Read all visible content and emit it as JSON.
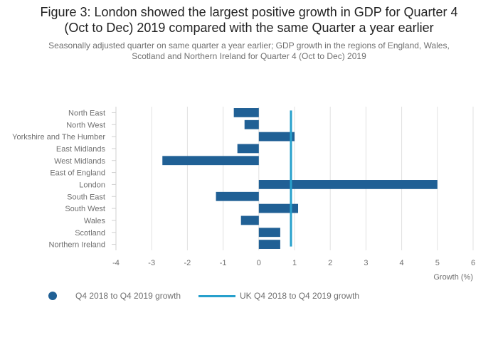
{
  "title_lines": [
    "Figure 3: London showed the largest positive growth in GDP for Quarter 4",
    "(Oct to Dec) 2019 compared with the same Quarter a year earlier"
  ],
  "subtitle_lines": [
    "Seasonally adjusted quarter on same quarter a year earlier; GDP growth in the regions of England, Wales,",
    "Scotland and Northern Ireland for Quarter 4 (Oct to Dec) 2019"
  ],
  "colors": {
    "bar": "#206095",
    "uk_line": "#27a0cc",
    "grid": "#e0e0e0",
    "axis_text": "#707070"
  },
  "chart_data": {
    "type": "bar",
    "orientation": "horizontal",
    "categories": [
      "North East",
      "North West",
      "Yorkshire and The Humber",
      "East Midlands",
      "West Midlands",
      "East of England",
      "London",
      "South East",
      "South West",
      "Wales",
      "Scotland",
      "Northern Ireland"
    ],
    "series": [
      {
        "name": "Q4 2018 to Q4 2019 growth",
        "values": [
          -0.7,
          -0.4,
          1.0,
          -0.6,
          -2.7,
          0.0,
          5.0,
          -1.2,
          1.1,
          -0.5,
          0.6,
          0.6
        ]
      }
    ],
    "reference_line": {
      "name": "UK Q4 2018 to Q4 2019 growth",
      "value": 0.9
    },
    "xlabel": "Growth (%)",
    "xlim": [
      -4,
      6
    ],
    "xticks": [
      -4,
      -3,
      -2,
      -1,
      0,
      1,
      2,
      3,
      4,
      5,
      6
    ],
    "grid": true,
    "legend_position": "bottom"
  },
  "legend": [
    {
      "label": "Q4 2018 to Q4 2019 growth",
      "shape": "dot"
    },
    {
      "label": "UK Q4 2018 to Q4 2019 growth",
      "shape": "line"
    }
  ]
}
